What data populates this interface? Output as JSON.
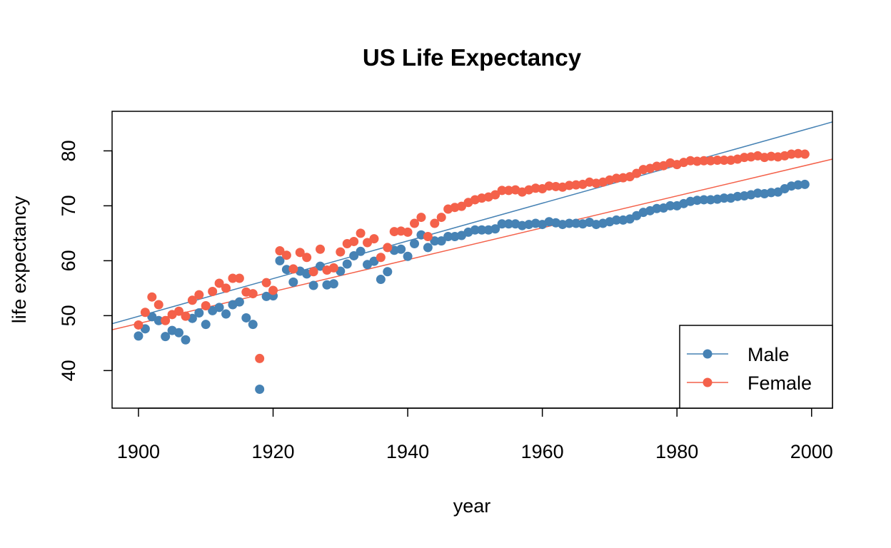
{
  "chart_data": {
    "type": "scatter",
    "title": "US Life Expectancy",
    "xlabel": "year",
    "ylabel": "life expectancy",
    "xlim": [
      1896.08,
      2003.1
    ],
    "ylim": [
      33.16,
      87.2
    ],
    "x_ticks": [
      1900,
      1920,
      1940,
      1960,
      1980,
      2000
    ],
    "y_ticks": [
      40,
      50,
      60,
      70,
      80
    ],
    "grid": false,
    "legend_position": "bottom-right",
    "x": [
      1900,
      1901,
      1902,
      1903,
      1904,
      1905,
      1906,
      1907,
      1908,
      1909,
      1910,
      1911,
      1912,
      1913,
      1914,
      1915,
      1916,
      1917,
      1918,
      1919,
      1920,
      1921,
      1922,
      1923,
      1924,
      1925,
      1926,
      1927,
      1928,
      1929,
      1930,
      1931,
      1932,
      1933,
      1934,
      1935,
      1936,
      1937,
      1938,
      1939,
      1940,
      1941,
      1942,
      1943,
      1944,
      1945,
      1946,
      1947,
      1948,
      1949,
      1950,
      1951,
      1952,
      1953,
      1954,
      1955,
      1956,
      1957,
      1958,
      1959,
      1960,
      1961,
      1962,
      1963,
      1964,
      1965,
      1966,
      1967,
      1968,
      1969,
      1970,
      1971,
      1972,
      1973,
      1974,
      1975,
      1976,
      1977,
      1978,
      1979,
      1980,
      1981,
      1982,
      1983,
      1984,
      1985,
      1986,
      1987,
      1988,
      1989,
      1990,
      1991,
      1992,
      1993,
      1994,
      1995,
      1996,
      1997,
      1998,
      1999
    ],
    "series": [
      {
        "name": "Male",
        "color": "#4682B4",
        "values": [
          46.3,
          47.6,
          49.8,
          49.1,
          46.2,
          47.3,
          46.9,
          45.6,
          49.5,
          50.5,
          48.4,
          50.9,
          51.5,
          50.3,
          52.0,
          52.5,
          49.6,
          48.4,
          36.6,
          53.5,
          53.6,
          60.0,
          58.4,
          56.1,
          58.1,
          57.6,
          55.5,
          59.0,
          55.6,
          55.8,
          58.1,
          59.4,
          60.9,
          61.7,
          59.3,
          59.9,
          56.6,
          58.0,
          61.9,
          62.1,
          60.8,
          63.1,
          64.7,
          62.4,
          63.6,
          63.6,
          64.4,
          64.4,
          64.6,
          65.2,
          65.6,
          65.6,
          65.6,
          65.8,
          66.7,
          66.7,
          66.7,
          66.4,
          66.6,
          66.8,
          66.6,
          67.1,
          66.9,
          66.6,
          66.8,
          66.8,
          66.7,
          67.0,
          66.6,
          66.8,
          67.1,
          67.4,
          67.4,
          67.6,
          68.2,
          68.8,
          69.1,
          69.5,
          69.6,
          70.0,
          70.0,
          70.4,
          70.8,
          71.0,
          71.1,
          71.1,
          71.2,
          71.4,
          71.4,
          71.7,
          71.8,
          72.0,
          72.3,
          72.2,
          72.4,
          72.5,
          73.1,
          73.6,
          73.8,
          73.9
        ]
      },
      {
        "name": "Female",
        "color": "#F4614A",
        "values": [
          48.3,
          50.6,
          53.4,
          52.0,
          49.1,
          50.2,
          50.8,
          49.9,
          52.8,
          53.8,
          51.8,
          54.4,
          55.9,
          55.0,
          56.8,
          56.8,
          54.3,
          54.0,
          42.2,
          56.0,
          54.6,
          61.8,
          61.0,
          58.5,
          61.5,
          60.6,
          58.0,
          62.1,
          58.3,
          58.7,
          61.6,
          63.1,
          63.5,
          65.0,
          63.3,
          64.0,
          60.6,
          62.4,
          65.3,
          65.4,
          65.2,
          66.8,
          67.9,
          64.4,
          66.8,
          67.9,
          69.4,
          69.7,
          69.9,
          70.6,
          71.1,
          71.4,
          71.6,
          72.0,
          72.8,
          72.8,
          72.9,
          72.5,
          72.9,
          73.2,
          73.1,
          73.6,
          73.5,
          73.4,
          73.7,
          73.8,
          73.9,
          74.3,
          74.1,
          74.3,
          74.7,
          75.0,
          75.1,
          75.3,
          75.9,
          76.6,
          76.8,
          77.2,
          77.3,
          77.8,
          77.5,
          77.9,
          78.2,
          78.1,
          78.2,
          78.2,
          78.3,
          78.3,
          78.3,
          78.5,
          78.8,
          78.9,
          79.1,
          78.8,
          79.0,
          78.9,
          79.1,
          79.4,
          79.5,
          79.4
        ]
      }
    ],
    "trend_lines": [
      {
        "series": "Male",
        "color": "#4682B4",
        "intercept": -602.2,
        "slope": 0.3432
      },
      {
        "series": "Female",
        "color": "#F4614A",
        "intercept": -503.0,
        "slope": 0.2903
      }
    ]
  }
}
